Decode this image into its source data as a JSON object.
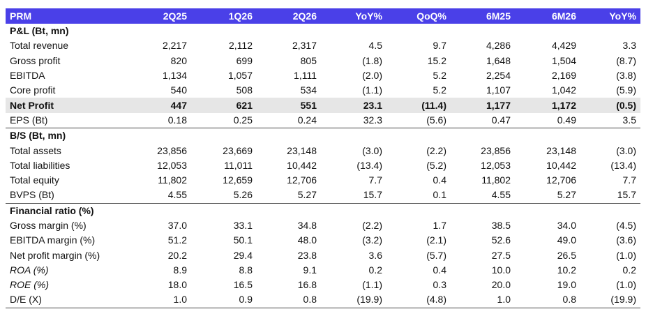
{
  "header": [
    "PRM",
    "2Q25",
    "1Q26",
    "2Q26",
    "YoY%",
    "QoQ%",
    "6M25",
    "6M26",
    "YoY%"
  ],
  "sections": [
    {
      "title": "P&L (Bt, mn)",
      "rows": [
        {
          "label": "Total revenue",
          "values": [
            "2,217",
            "2,112",
            "2,317",
            "4.5",
            "9.7",
            "4,286",
            "4,429",
            "3.3"
          ]
        },
        {
          "label": "Gross profit",
          "values": [
            "820",
            "699",
            "805",
            "(1.8)",
            "15.2",
            "1,648",
            "1,504",
            "(8.7)"
          ]
        },
        {
          "label": "EBITDA",
          "values": [
            "1,134",
            "1,057",
            "1,111",
            "(2.0)",
            "5.2",
            "2,254",
            "2,169",
            "(3.8)"
          ]
        },
        {
          "label": "Core profit",
          "values": [
            "540",
            "508",
            "534",
            "(1.1)",
            "5.2",
            "1,107",
            "1,042",
            "(5.9)"
          ]
        },
        {
          "label": "Net Profit",
          "values": [
            "447",
            "621",
            "551",
            "23.1",
            "(11.4)",
            "1,177",
            "1,172",
            "(0.5)"
          ],
          "highlight": true
        },
        {
          "label": "EPS (Bt)",
          "values": [
            "0.18",
            "0.25",
            "0.24",
            "32.3",
            "(5.6)",
            "0.47",
            "0.49",
            "3.5"
          ]
        }
      ]
    },
    {
      "title": "B/S (Bt, mn)",
      "rows": [
        {
          "label": "Total assets",
          "values": [
            "23,856",
            "23,669",
            "23,148",
            "(3.0)",
            "(2.2)",
            "23,856",
            "23,148",
            "(3.0)"
          ]
        },
        {
          "label": "Total liabilities",
          "values": [
            "12,053",
            "11,011",
            "10,442",
            "(13.4)",
            "(5.2)",
            "12,053",
            "10,442",
            "(13.4)"
          ]
        },
        {
          "label": "Total equity",
          "values": [
            "11,802",
            "12,659",
            "12,706",
            "7.7",
            "0.4",
            "11,802",
            "12,706",
            "7.7"
          ]
        },
        {
          "label": "BVPS (Bt)",
          "values": [
            "4.55",
            "5.26",
            "5.27",
            "15.7",
            "0.1",
            "4.55",
            "5.27",
            "15.7"
          ]
        }
      ]
    },
    {
      "title": "Financial ratio (%)",
      "rows": [
        {
          "label": "Gross margin (%)",
          "values": [
            "37.0",
            "33.1",
            "34.8",
            "(2.2)",
            "1.7",
            "38.5",
            "34.0",
            "(4.5)"
          ]
        },
        {
          "label": "EBITDA margin (%)",
          "values": [
            "51.2",
            "50.1",
            "48.0",
            "(3.2)",
            "(2.1)",
            "52.6",
            "49.0",
            "(3.6)"
          ]
        },
        {
          "label": "Net profit margin (%)",
          "values": [
            "20.2",
            "29.4",
            "23.8",
            "3.6",
            "(5.7)",
            "27.5",
            "26.5",
            "(1.0)"
          ]
        },
        {
          "label": "ROA (%)",
          "values": [
            "8.9",
            "8.8",
            "9.1",
            "0.2",
            "0.4",
            "10.0",
            "10.2",
            "0.2"
          ],
          "italic": true
        },
        {
          "label": "ROE (%)",
          "values": [
            "18.0",
            "16.5",
            "16.8",
            "(1.1)",
            "0.3",
            "20.0",
            "19.0",
            "(1.0)"
          ],
          "italic": true
        },
        {
          "label": "D/E (X)",
          "values": [
            "1.0",
            "0.9",
            "0.8",
            "(19.9)",
            "(4.8)",
            "1.0",
            "0.8",
            "(19.9)"
          ]
        }
      ]
    }
  ],
  "colors": {
    "header_bg": "#4a40e8",
    "header_text": "#ffffff",
    "highlight_row": "#e6e6e6"
  }
}
